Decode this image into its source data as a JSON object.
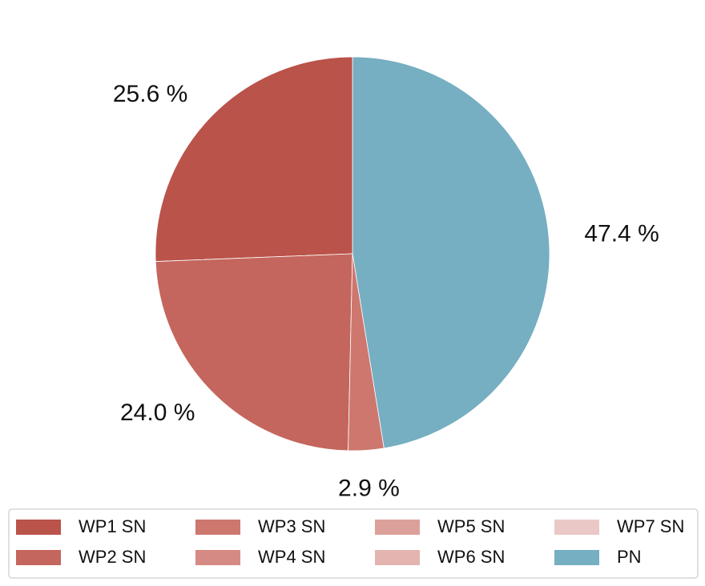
{
  "chart_data": {
    "type": "pie",
    "start": "top",
    "direction": "counterclockwise",
    "slices": [
      {
        "name": "PN",
        "value": 47.4,
        "label": "47.4 %",
        "color": "#76aec2"
      },
      {
        "name": "WP1 SN",
        "value": 25.6,
        "label": "25.6 %",
        "color": "#ba534a"
      },
      {
        "name": "WP2 SN",
        "value": 24.0,
        "label": "24.0 %",
        "color": "#c4665d"
      },
      {
        "name": "WP3 SN",
        "value": 2.9,
        "label": "2.9 %",
        "color": "#cd776f"
      },
      {
        "name": "WP4 SN",
        "value": 0,
        "label": "",
        "color": "#d58a83"
      },
      {
        "name": "WP5 SN",
        "value": 0,
        "label": "",
        "color": "#dca09b"
      },
      {
        "name": "WP6 SN",
        "value": 0,
        "label": "",
        "color": "#e3b4b0"
      },
      {
        "name": "WP7 SN",
        "value": 0,
        "label": "",
        "color": "#eac8c6"
      }
    ],
    "legend": {
      "placement": "bottom",
      "columns": 4,
      "entries": [
        "WP1 SN",
        "WP2 SN",
        "WP3 SN",
        "WP4 SN",
        "WP5 SN",
        "WP6 SN",
        "WP7 SN",
        "PN"
      ]
    }
  }
}
